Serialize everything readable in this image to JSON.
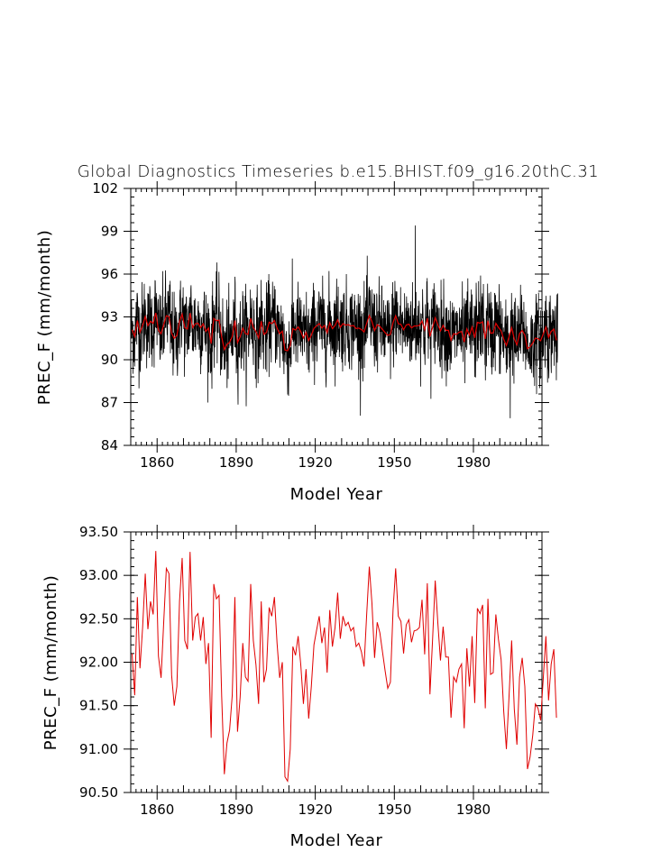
{
  "chart_data": [
    {
      "type": "line",
      "title": "Global Diagnostics Timeseries b.e15.BHIST.f09_g16.20thC.31",
      "xlabel": "Model Year",
      "ylabel": "PREC_F (mm/month)",
      "xlim": [
        1850,
        2006
      ],
      "ylim": [
        84,
        102
      ],
      "xticks": [
        1860,
        1890,
        1920,
        1950,
        1980
      ],
      "yticks": [
        "84",
        "87",
        "90",
        "93",
        "96",
        "99",
        "102"
      ],
      "series": [
        {
          "color": "#000000",
          "kind": "monthly",
          "mean": 92.2,
          "amplitude": 1.5,
          "max": 99.4,
          "min": 85.9
        },
        {
          "color": "#e00000",
          "kind": "annual mean, same as panel 2"
        }
      ]
    },
    {
      "type": "line",
      "title": "",
      "xlabel": "Model Year",
      "ylabel": "PREC_F (mm/month)",
      "xlim": [
        1850,
        2006
      ],
      "ylim": [
        90.5,
        93.5
      ],
      "xticks": [
        1860,
        1890,
        1920,
        1950,
        1980
      ],
      "yticks": [
        "90.50",
        "91.00",
        "91.50",
        "92.00",
        "92.50",
        "93.00",
        "93.50"
      ],
      "series": [
        {
          "color": "#e00000",
          "x_start": 1850,
          "values": [
            92.1,
            91.62,
            92.75,
            91.93,
            92.4,
            93.02,
            92.38,
            92.7,
            92.55,
            93.28,
            92.07,
            91.82,
            92.46,
            93.08,
            93.02,
            91.85,
            91.5,
            91.72,
            92.7,
            93.2,
            92.25,
            92.15,
            93.27,
            92.25,
            92.52,
            92.56,
            92.25,
            92.52,
            91.98,
            92.22,
            91.13,
            92.9,
            92.73,
            92.77,
            91.6,
            90.71,
            91.07,
            91.22,
            91.62,
            92.75,
            91.2,
            91.6,
            92.22,
            91.83,
            91.78,
            92.9,
            92.25,
            91.97,
            91.52,
            92.7,
            91.77,
            91.92,
            92.63,
            92.53,
            92.75,
            92.22,
            91.82,
            92.0,
            90.68,
            90.63,
            91.0,
            92.18,
            92.08,
            92.3,
            91.97,
            91.52,
            91.92,
            91.35,
            91.72,
            92.2,
            92.37,
            92.53,
            92.22,
            92.4,
            91.88,
            92.6,
            92.18,
            92.4,
            92.8,
            92.27,
            92.53,
            92.42,
            92.46,
            92.36,
            92.4,
            92.18,
            92.22,
            92.12,
            91.95,
            92.55,
            93.1,
            92.68,
            92.05,
            92.46,
            92.34,
            92.12,
            91.9,
            91.7,
            91.77,
            92.6,
            93.08,
            92.53,
            92.47,
            92.1,
            92.43,
            92.49,
            92.23,
            92.36,
            92.37,
            92.4,
            92.72,
            92.09,
            92.91,
            91.63,
            92.26,
            92.94,
            92.45,
            92.02,
            92.41,
            92.06,
            92.06,
            91.36,
            91.83,
            91.77,
            91.92,
            91.98,
            91.24,
            92.16,
            91.72,
            92.3,
            91.53,
            92.62,
            92.56,
            92.66,
            91.47,
            92.73,
            91.86,
            91.88,
            92.55,
            92.26,
            92.03,
            91.43,
            91.0,
            91.6,
            92.25,
            91.46,
            91.05,
            91.83,
            92.05,
            91.72,
            90.77,
            90.91,
            91.16,
            91.52,
            91.47,
            91.33,
            91.82,
            92.3,
            91.56,
            91.98,
            92.15,
            91.36
          ]
        }
      ]
    }
  ]
}
